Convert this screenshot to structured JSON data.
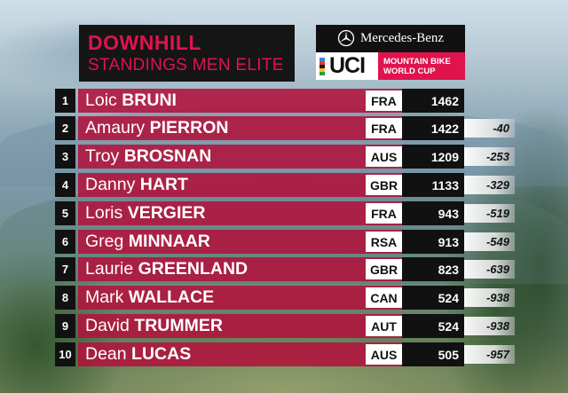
{
  "header": {
    "title_line1": "DOWNHILL",
    "title_line2": "STANDINGS MEN ELITE"
  },
  "sponsor": {
    "brand": "Mercedes-Benz",
    "logo_text": "UCI",
    "series_line1": "MOUNTAIN BIKE",
    "series_line2": "WORLD CUP"
  },
  "colors": {
    "accent": "#e0134e",
    "row_bar": "#b2123c",
    "dark": "#111111"
  },
  "standings": [
    {
      "pos": "1",
      "first": "Loic",
      "last": "BRUNI",
      "nat": "FRA",
      "pts": "1462",
      "gap": ""
    },
    {
      "pos": "2",
      "first": "Amaury",
      "last": "PIERRON",
      "nat": "FRA",
      "pts": "1422",
      "gap": "-40"
    },
    {
      "pos": "3",
      "first": "Troy",
      "last": "BROSNAN",
      "nat": "AUS",
      "pts": "1209",
      "gap": "-253"
    },
    {
      "pos": "4",
      "first": "Danny",
      "last": "HART",
      "nat": "GBR",
      "pts": "1133",
      "gap": "-329"
    },
    {
      "pos": "5",
      "first": "Loris",
      "last": "VERGIER",
      "nat": "FRA",
      "pts": "943",
      "gap": "-519"
    },
    {
      "pos": "6",
      "first": "Greg",
      "last": "MINNAAR",
      "nat": "RSA",
      "pts": "913",
      "gap": "-549"
    },
    {
      "pos": "7",
      "first": "Laurie",
      "last": "GREENLAND",
      "nat": "GBR",
      "pts": "823",
      "gap": "-639"
    },
    {
      "pos": "8",
      "first": "Mark",
      "last": "WALLACE",
      "nat": "CAN",
      "pts": "524",
      "gap": "-938"
    },
    {
      "pos": "9",
      "first": "David",
      "last": "TRUMMER",
      "nat": "AUT",
      "pts": "524",
      "gap": "-938"
    },
    {
      "pos": "10",
      "first": "Dean",
      "last": "LUCAS",
      "nat": "AUS",
      "pts": "505",
      "gap": "-957"
    }
  ]
}
